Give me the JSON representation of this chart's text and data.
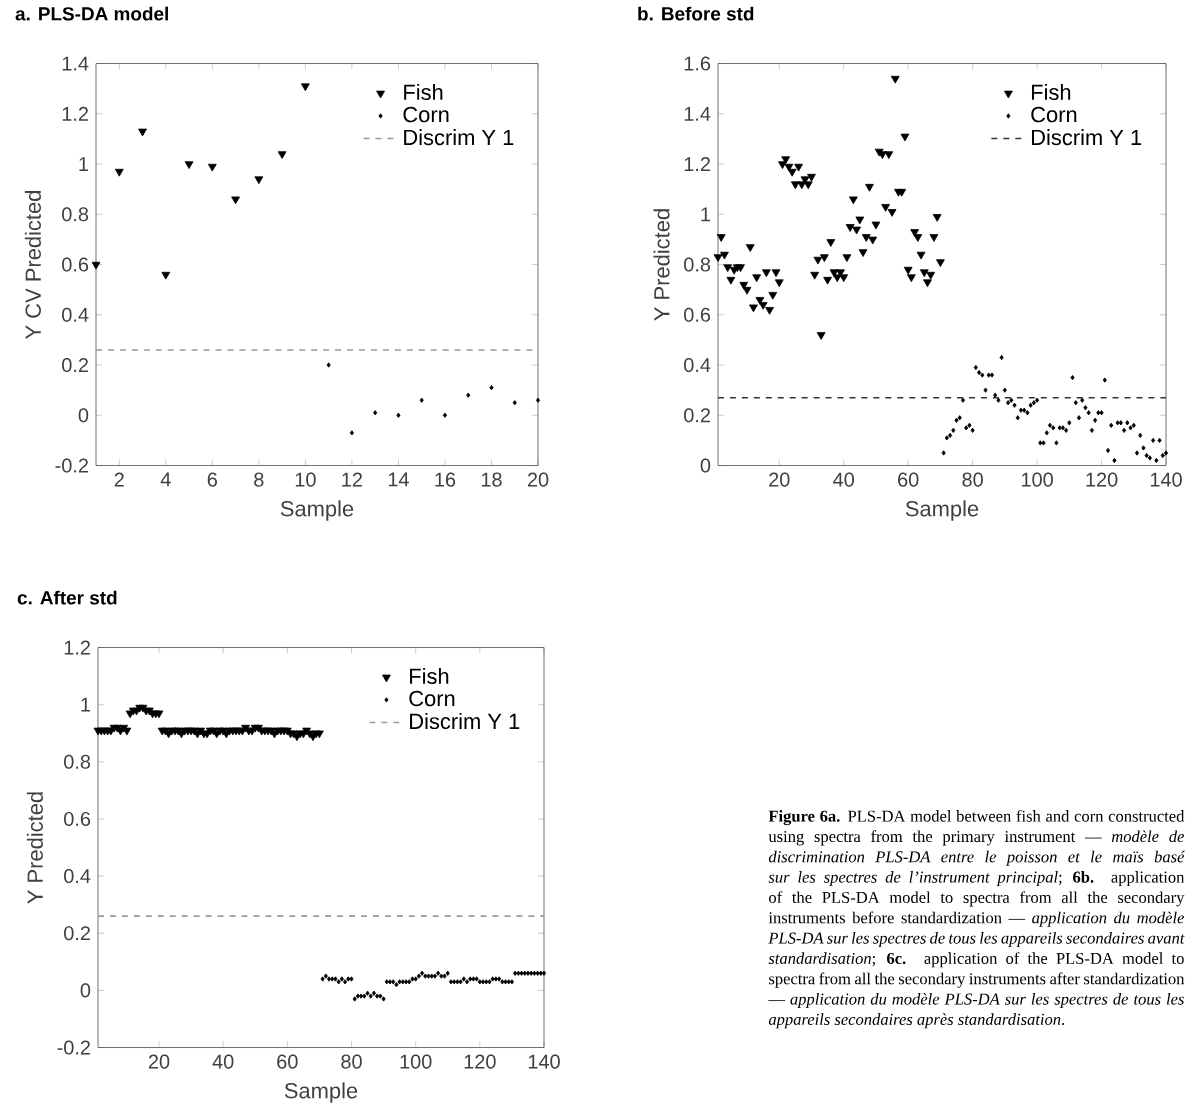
{
  "chart_data": [
    {
      "type": "scatter",
      "title": "a. PLS-DA model",
      "xlabel": "Sample",
      "ylabel": "Y CV Predicted",
      "xlim": [
        1,
        20
      ],
      "ylim": [
        -0.2,
        1.4
      ],
      "xticks": [
        2,
        4,
        6,
        8,
        10,
        12,
        14,
        16,
        18,
        20
      ],
      "yticks": [
        -0.2,
        0,
        0.2,
        0.4,
        0.6,
        0.8,
        1,
        1.2,
        1.4
      ],
      "legend": "top right",
      "series": [
        {
          "name": "Fish",
          "color": "#000000",
          "marker": "triangle",
          "x": [
            1,
            2,
            3,
            4,
            5,
            6,
            7,
            8,
            9,
            10
          ],
          "values": [
            0.6,
            0.97,
            1.13,
            0.56,
            1.0,
            0.99,
            0.86,
            0.94,
            1.04,
            1.31
          ]
        },
        {
          "name": "Corn",
          "color": "#000000",
          "marker": "diamond",
          "x": [
            11,
            12,
            13,
            14,
            15,
            16,
            17,
            18,
            19,
            20
          ],
          "values": [
            0.2,
            -0.07,
            0.01,
            0.0,
            0.06,
            0.0,
            0.08,
            0.11,
            0.05,
            0.06
          ]
        }
      ],
      "ref_lines": [
        {
          "axis": "y",
          "value": 0.26,
          "label": "Discrim Y 1",
          "color": "#999999",
          "line_style": "dashed"
        }
      ]
    },
    {
      "type": "scatter",
      "title": "b. Before std",
      "xlabel": "Sample",
      "ylabel": "Y Predicted",
      "xlim": [
        1,
        140
      ],
      "ylim": [
        0,
        1.6
      ],
      "xticks": [
        20,
        40,
        60,
        80,
        100,
        120,
        140
      ],
      "yticks": [
        0,
        0.2,
        0.4,
        0.6,
        0.8,
        1,
        1.2,
        1.4,
        1.6
      ],
      "legend": "top right",
      "series": [
        {
          "name": "Fish",
          "color": "#000000",
          "marker": "triangle",
          "x": [
            1,
            2,
            3,
            4,
            5,
            6,
            7,
            8,
            9,
            10,
            11,
            12,
            13,
            14,
            15,
            16,
            17,
            18,
            19,
            20,
            21,
            22,
            23,
            24,
            25,
            26,
            27,
            28,
            29,
            30,
            31,
            32,
            33,
            34,
            35,
            36,
            37,
            38,
            39,
            40,
            41,
            42,
            43,
            44,
            45,
            46,
            47,
            48,
            49,
            50,
            51,
            52,
            53,
            54,
            55,
            56,
            57,
            58,
            59,
            60,
            61,
            62,
            63,
            64,
            65,
            66,
            67,
            68,
            69,
            70
          ],
          "values": [
            0.83,
            0.91,
            0.84,
            0.79,
            0.74,
            0.78,
            0.79,
            0.79,
            0.72,
            0.7,
            0.87,
            0.63,
            0.75,
            0.66,
            0.64,
            0.77,
            0.62,
            0.68,
            0.77,
            0.73,
            1.2,
            1.22,
            1.19,
            1.17,
            1.12,
            1.19,
            1.12,
            1.14,
            1.12,
            1.15,
            0.76,
            0.82,
            0.52,
            0.83,
            0.74,
            0.89,
            0.77,
            0.75,
            0.77,
            0.75,
            0.83,
            0.95,
            1.06,
            0.94,
            0.98,
            0.85,
            0.91,
            1.11,
            0.9,
            0.96,
            1.25,
            1.24,
            1.03,
            1.24,
            1.01,
            1.54,
            1.09,
            1.09,
            1.31,
            0.78,
            0.75,
            0.93,
            0.91,
            0.84,
            0.77,
            0.73,
            0.76,
            0.91,
            0.99,
            0.81
          ]
        },
        {
          "name": "Corn",
          "color": "#000000",
          "marker": "diamond",
          "x": [
            71,
            72,
            73,
            74,
            75,
            76,
            77,
            78,
            79,
            80,
            81,
            82,
            83,
            84,
            85,
            86,
            87,
            88,
            89,
            90,
            91,
            92,
            93,
            94,
            95,
            96,
            97,
            98,
            99,
            100,
            101,
            102,
            103,
            104,
            105,
            106,
            107,
            108,
            109,
            110,
            111,
            112,
            113,
            114,
            115,
            116,
            117,
            118,
            119,
            120,
            121,
            122,
            123,
            124,
            125,
            126,
            127,
            128,
            129,
            130,
            131,
            132,
            133,
            134,
            135,
            136,
            137,
            138,
            139,
            140
          ],
          "values": [
            0.05,
            0.11,
            0.12,
            0.14,
            0.18,
            0.19,
            0.26,
            0.15,
            0.16,
            0.14,
            0.39,
            0.37,
            0.36,
            0.3,
            0.36,
            0.36,
            0.28,
            0.26,
            0.43,
            0.3,
            0.25,
            0.26,
            0.24,
            0.19,
            0.22,
            0.22,
            0.21,
            0.24,
            0.25,
            0.26,
            0.09,
            0.09,
            0.13,
            0.16,
            0.15,
            0.09,
            0.15,
            0.15,
            0.14,
            0.17,
            0.35,
            0.25,
            0.19,
            0.26,
            0.23,
            0.21,
            0.14,
            0.18,
            0.21,
            0.21,
            0.34,
            0.06,
            0.16,
            0.02,
            0.17,
            0.17,
            0.14,
            0.17,
            0.15,
            0.16,
            0.05,
            0.12,
            0.07,
            0.04,
            0.03,
            0.1,
            0.02,
            0.1,
            0.04,
            0.05
          ]
        }
      ],
      "ref_lines": [
        {
          "axis": "y",
          "value": 0.27,
          "label": "Discrim Y 1",
          "color": "#333333",
          "line_style": "dashed"
        }
      ]
    },
    {
      "type": "scatter",
      "title": "c. After std",
      "xlabel": "Sample",
      "ylabel": "Y Predicted",
      "xlim": [
        1,
        140
      ],
      "ylim": [
        -0.2,
        1.2
      ],
      "xticks": [
        20,
        40,
        60,
        80,
        100,
        120,
        140
      ],
      "yticks": [
        -0.2,
        0,
        0.2,
        0.4,
        0.6,
        0.8,
        1,
        1.2
      ],
      "legend": "top right",
      "series": [
        {
          "name": "Fish",
          "color": "#000000",
          "marker": "triangle",
          "x": [
            1,
            2,
            3,
            4,
            5,
            6,
            7,
            8,
            9,
            10,
            11,
            12,
            13,
            14,
            15,
            16,
            17,
            18,
            19,
            20,
            21,
            22,
            23,
            24,
            25,
            26,
            27,
            28,
            29,
            30,
            31,
            32,
            33,
            34,
            35,
            36,
            37,
            38,
            39,
            40,
            41,
            42,
            43,
            44,
            45,
            46,
            47,
            48,
            49,
            50,
            51,
            52,
            53,
            54,
            55,
            56,
            57,
            58,
            59,
            60,
            61,
            62,
            63,
            64,
            65,
            66,
            67,
            68,
            69,
            70
          ],
          "values": [
            0.91,
            0.91,
            0.91,
            0.91,
            0.91,
            0.92,
            0.92,
            0.91,
            0.92,
            0.91,
            0.97,
            0.98,
            0.98,
            0.99,
            0.99,
            0.98,
            0.98,
            0.97,
            0.97,
            0.97,
            0.91,
            0.91,
            0.9,
            0.91,
            0.91,
            0.91,
            0.9,
            0.91,
            0.91,
            0.91,
            0.91,
            0.9,
            0.91,
            0.9,
            0.9,
            0.91,
            0.91,
            0.9,
            0.91,
            0.91,
            0.9,
            0.91,
            0.91,
            0.91,
            0.91,
            0.91,
            0.92,
            0.91,
            0.91,
            0.92,
            0.92,
            0.91,
            0.91,
            0.91,
            0.91,
            0.9,
            0.91,
            0.91,
            0.91,
            0.91,
            0.9,
            0.9,
            0.89,
            0.9,
            0.9,
            0.91,
            0.9,
            0.89,
            0.9,
            0.9
          ]
        },
        {
          "name": "Corn",
          "color": "#000000",
          "marker": "diamond",
          "x": [
            71,
            72,
            73,
            74,
            75,
            76,
            77,
            78,
            79,
            80,
            81,
            82,
            83,
            84,
            85,
            86,
            87,
            88,
            89,
            90,
            91,
            92,
            93,
            94,
            95,
            96,
            97,
            98,
            99,
            100,
            101,
            102,
            103,
            104,
            105,
            106,
            107,
            108,
            109,
            110,
            111,
            112,
            113,
            114,
            115,
            116,
            117,
            118,
            119,
            120,
            121,
            122,
            123,
            124,
            125,
            126,
            127,
            128,
            129,
            130,
            131,
            132,
            133,
            134,
            135,
            136,
            137,
            138,
            139,
            140
          ],
          "values": [
            0.04,
            0.05,
            0.04,
            0.04,
            0.04,
            0.03,
            0.04,
            0.03,
            0.04,
            0.04,
            -0.03,
            -0.02,
            -0.02,
            -0.02,
            -0.01,
            -0.02,
            -0.01,
            -0.02,
            -0.02,
            -0.03,
            0.03,
            0.03,
            0.03,
            0.02,
            0.03,
            0.03,
            0.03,
            0.03,
            0.04,
            0.04,
            0.05,
            0.06,
            0.05,
            0.05,
            0.05,
            0.05,
            0.06,
            0.05,
            0.05,
            0.06,
            0.03,
            0.03,
            0.03,
            0.03,
            0.04,
            0.03,
            0.04,
            0.04,
            0.04,
            0.03,
            0.03,
            0.03,
            0.03,
            0.04,
            0.04,
            0.04,
            0.03,
            0.03,
            0.03,
            0.03,
            0.06,
            0.06,
            0.06,
            0.06,
            0.06,
            0.06,
            0.06,
            0.06,
            0.06,
            0.06
          ]
        }
      ],
      "ref_lines": [
        {
          "axis": "y",
          "value": 0.26,
          "label": "Discrim Y 1",
          "color": "#999999",
          "line_style": "dashed"
        }
      ],
      "annotations": [
        "**Figure 6a.** PLS-DA model between fish and corn constructed using spectra from the primary instrument — *modèle de discrimination PLS-DA entre le poisson et le maïs basé sur les spectres de l’instrument principal*; **6b.** application of the PLS-DA model to spectra from all the secondary instruments before standardization — *application du modèle PLS-DA sur les spectres de tous les appareils secondaires avant standardisation*; **6c.** application of the PLS-DA model to spectra from all the secondary instruments after standardization — *application du modèle PLS-DA sur les spectres de tous les appareils secondaires après standardisation*."
      ]
    }
  ]
}
